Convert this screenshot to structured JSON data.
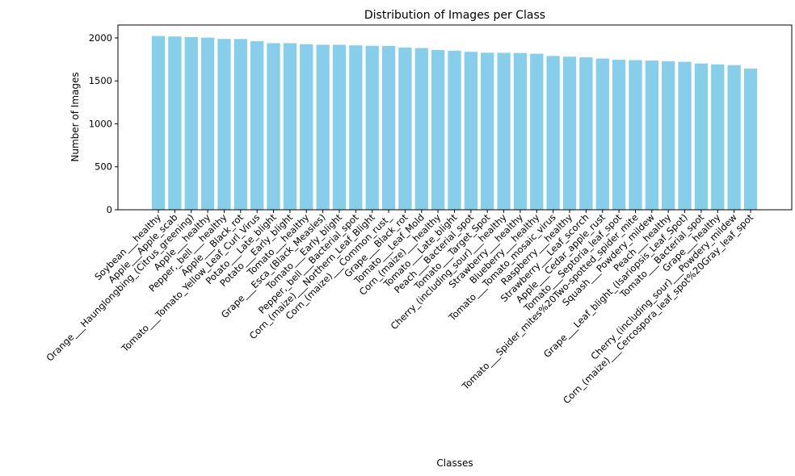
{
  "chart_data": {
    "type": "bar",
    "title": "Distribution of Images per Class",
    "xlabel": "Classes",
    "ylabel": "Number of Images",
    "ylim": [
      0,
      2150
    ],
    "yticks": [
      0,
      500,
      1000,
      1500,
      2000
    ],
    "grid": false,
    "bar_color": "#87CEEB",
    "categories": [
      "Soybean___healthy",
      "Apple___Apple_scab",
      "Orange___Haunglongbing_(Citrus_greening)",
      "Apple___healthy",
      "Pepper,_bell___healthy",
      "Apple___Black_rot",
      "Tomato___Tomato_Yellow_Leaf_Curl_Virus",
      "Potato___Late_blight",
      "Potato___Early_blight",
      "Tomato___healthy",
      "Grape___Esca_(Black_Measles)",
      "Tomato___Early_blight",
      "Pepper,_bell___Bacterial_spot",
      "Corn_(maize)___Northern_Leaf_Blight",
      "Corn_(maize)___Common_rust_",
      "Grape___Black_rot",
      "Tomato___Leaf_Mold",
      "Corn_(maize)___healthy",
      "Tomato___Late_blight",
      "Peach___Bacterial_spot",
      "Tomato___Target_Spot",
      "Cherry_(including_sour)___healthy",
      "Strawberry___healthy",
      "Blueberry___healthy",
      "Tomato___Tomato_mosaic_virus",
      "Raspberry___healthy",
      "Strawberry___Leaf_scorch",
      "Apple___Cedar_apple_rust",
      "Tomato___Septoria_leaf_spot",
      "Tomato___Spider_mites%20Two-spotted_spider_mite",
      "Squash___Powdery_mildew",
      "Peach___healthy",
      "Grape___Leaf_blight_(Isariopsis_Leaf_Spot)",
      "Tomato___Bacterial_spot",
      "Grape___healthy",
      "Cherry_(including_sour)___Powdery_mildew",
      "Corn_(maize)___Cercospora_leaf_spot%20Gray_leaf_spot"
    ],
    "values": [
      2022,
      2016,
      2010,
      2003,
      1988,
      1987,
      1961,
      1939,
      1939,
      1926,
      1920,
      1920,
      1913,
      1908,
      1907,
      1888,
      1882,
      1859,
      1851,
      1838,
      1827,
      1826,
      1824,
      1816,
      1790,
      1781,
      1774,
      1760,
      1745,
      1741,
      1736,
      1728,
      1722,
      1702,
      1692,
      1683,
      1642
    ]
  }
}
